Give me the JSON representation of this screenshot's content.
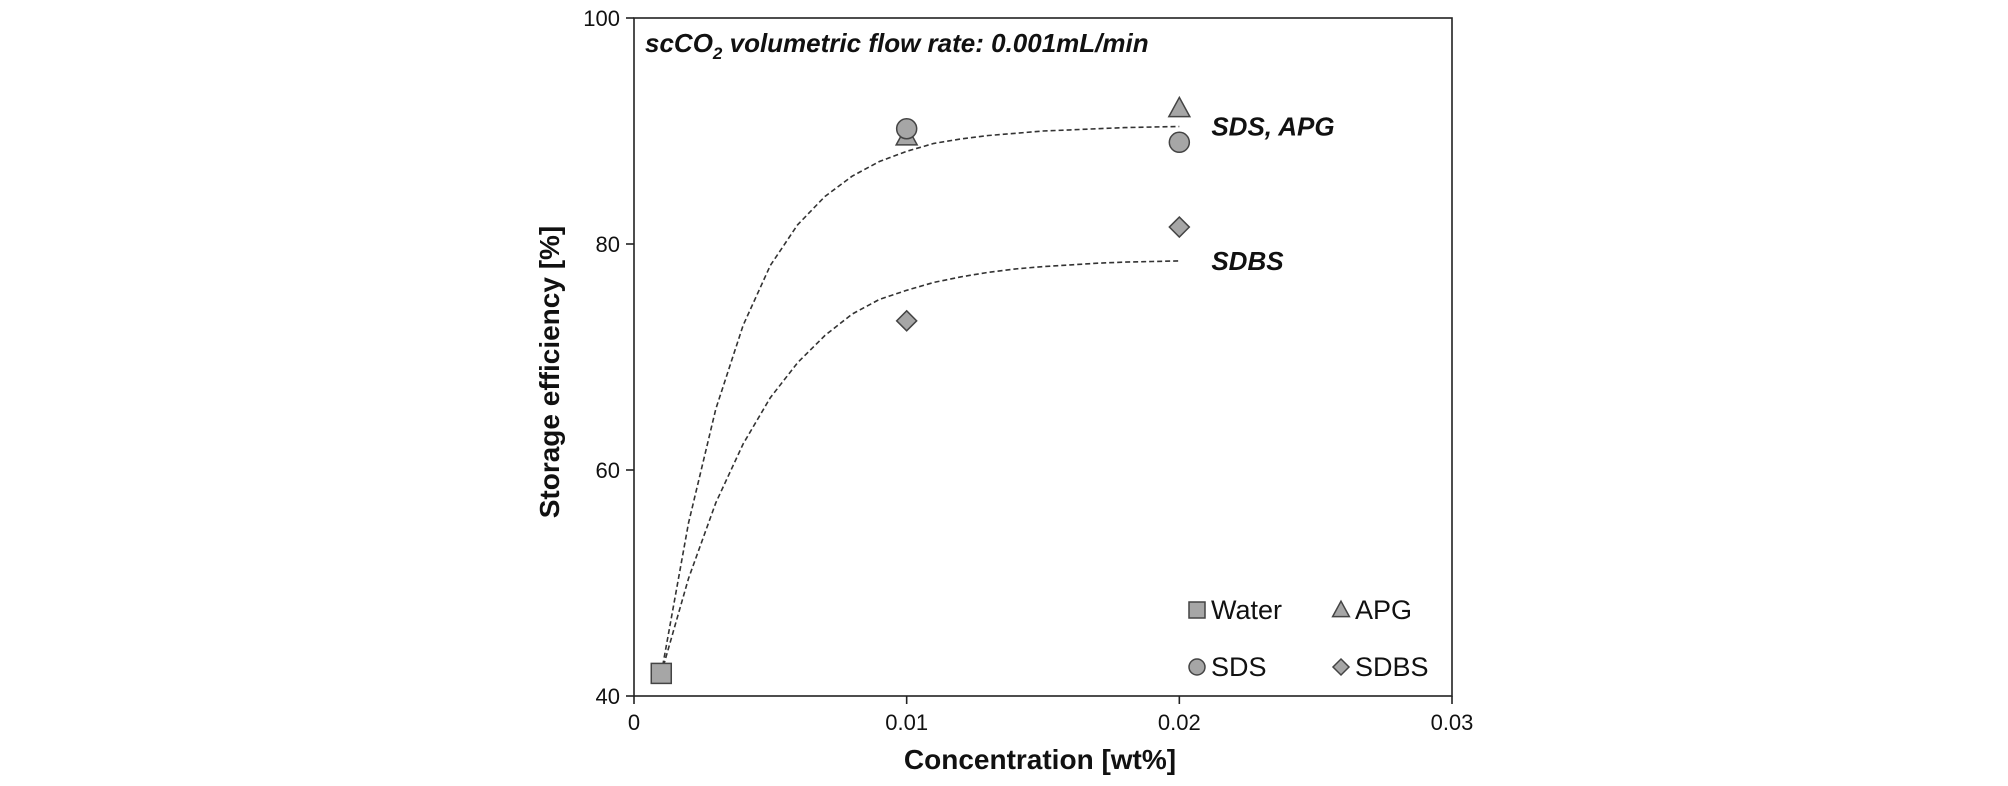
{
  "chart_data": {
    "type": "scatter",
    "annotation": {
      "prefix": "scCO",
      "subscript": "2",
      "suffix": " volumetric flow rate: 0.001mL/min"
    },
    "xlabel": "Concentration [wt%]",
    "ylabel": "Storage efficiency [%]",
    "xlim": [
      0,
      0.03
    ],
    "ylim": [
      40,
      100
    ],
    "x_ticks": [
      0,
      0.01,
      0.02,
      0.03
    ],
    "x_tick_labels": [
      "0",
      "0.01",
      "0.02",
      "0.03"
    ],
    "y_ticks": [
      40,
      60,
      80,
      100
    ],
    "y_tick_labels": [
      "40",
      "60",
      "80",
      "100"
    ],
    "grid": false,
    "legend_position": "bottom-right",
    "series": [
      {
        "name": "Water",
        "marker": "square",
        "color": "#a6a6a6",
        "x": [
          0.001
        ],
        "y": [
          42
        ]
      },
      {
        "name": "APG",
        "marker": "triangle",
        "color": "#a6a6a6",
        "x": [
          0.01,
          0.02
        ],
        "y": [
          89.5,
          92
        ]
      },
      {
        "name": "SDS",
        "marker": "circle",
        "color": "#a6a6a6",
        "x": [
          0.01,
          0.02
        ],
        "y": [
          90.2,
          89
        ]
      },
      {
        "name": "SDBS",
        "marker": "diamond",
        "color": "#a6a6a6",
        "x": [
          0.01,
          0.02
        ],
        "y": [
          73.2,
          81.5
        ]
      }
    ],
    "trendlines": [
      {
        "label": "SDS, APG",
        "style": "dashed",
        "x": [
          0.001,
          0.002,
          0.003,
          0.004,
          0.005,
          0.006,
          0.007,
          0.008,
          0.009,
          0.01,
          0.011,
          0.012,
          0.013,
          0.014,
          0.015,
          0.016,
          0.017,
          0.018,
          0.019,
          0.02
        ],
        "y": [
          42,
          55.3,
          65.4,
          72.8,
          78.1,
          81.7,
          84.2,
          86.0,
          87.3,
          88.2,
          88.9,
          89.3,
          89.6,
          89.8,
          90.0,
          90.1,
          90.2,
          90.3,
          90.35,
          90.4
        ]
      },
      {
        "label": "SDBS",
        "style": "dashed",
        "x": [
          0.001,
          0.002,
          0.003,
          0.004,
          0.005,
          0.006,
          0.007,
          0.008,
          0.009,
          0.01,
          0.011,
          0.012,
          0.013,
          0.014,
          0.015,
          0.016,
          0.017,
          0.018,
          0.019,
          0.02
        ],
        "y": [
          42,
          50.4,
          57.1,
          62.3,
          66.4,
          69.5,
          71.9,
          73.8,
          75.1,
          75.9,
          76.6,
          77.1,
          77.5,
          77.8,
          78.0,
          78.15,
          78.3,
          78.4,
          78.45,
          78.5
        ]
      }
    ]
  }
}
